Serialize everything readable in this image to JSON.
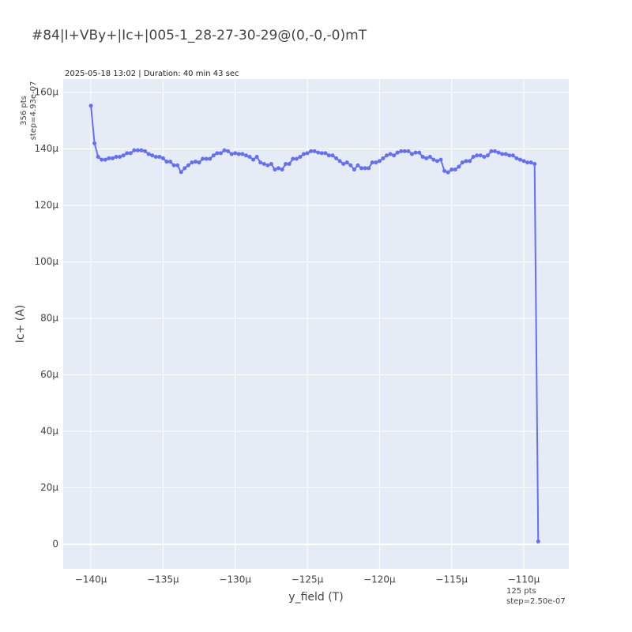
{
  "chart_data": {
    "type": "line",
    "title": "#84|I+VBy+|Ic+|005-1_28-27-30-29@(0,-0,-0)mT",
    "subtitle": "2025-05-18 13:02 | Duration: 40 min 43 sec",
    "y_annotation": [
      "356 pts",
      "step=4.93e-07"
    ],
    "x_annotation": [
      "125 pts",
      "step=2.50e-07"
    ],
    "xlabel": "y_field (T)",
    "ylabel": "Ic+ (A)",
    "xlim": [
      -141.92,
      -106.88
    ],
    "ylim": [
      -8.67,
      164.76
    ],
    "grid": true,
    "xticks": [
      {
        "value": -140,
        "label": "−140µ"
      },
      {
        "value": -135,
        "label": "−135µ"
      },
      {
        "value": -130,
        "label": "−130µ"
      },
      {
        "value": -125,
        "label": "−125µ"
      },
      {
        "value": -120,
        "label": "−120µ"
      },
      {
        "value": -115,
        "label": "−115µ"
      },
      {
        "value": -110,
        "label": "−110µ"
      }
    ],
    "yticks": [
      0,
      {
        "value": 20,
        "label": "20µ"
      },
      {
        "value": 40,
        "label": "40µ"
      },
      {
        "value": 60,
        "label": "60µ"
      },
      {
        "value": 80,
        "label": "80µ"
      },
      {
        "value": 100,
        "label": "100µ"
      },
      {
        "value": 120,
        "label": "120µ"
      },
      {
        "value": 140,
        "label": "140µ"
      },
      {
        "value": 160,
        "label": "160µ"
      }
    ],
    "x": [
      -140,
      -139.75,
      -139.5,
      -139.25,
      -139,
      -138.75,
      -138.5,
      -138.25,
      -138,
      -137.75,
      -137.5,
      -137.25,
      -137,
      -136.75,
      -136.5,
      -136.25,
      -136,
      -135.75,
      -135.5,
      -135.25,
      -135,
      -134.75,
      -134.5,
      -134.25,
      -134,
      -133.75,
      -133.5,
      -133.25,
      -133,
      -132.75,
      -132.5,
      -132.25,
      -132,
      -131.75,
      -131.5,
      -131.25,
      -131,
      -130.75,
      -130.5,
      -130.25,
      -130,
      -129.75,
      -129.5,
      -129.25,
      -129,
      -128.75,
      -128.5,
      -128.25,
      -128,
      -127.75,
      -127.5,
      -127.25,
      -127,
      -126.75,
      -126.5,
      -126.25,
      -126,
      -125.75,
      -125.5,
      -125.25,
      -125,
      -124.75,
      -124.5,
      -124.25,
      -124,
      -123.75,
      -123.5,
      -123.25,
      -123,
      -122.75,
      -122.5,
      -122.25,
      -122,
      -121.75,
      -121.5,
      -121.25,
      -121,
      -120.75,
      -120.5,
      -120.25,
      -120,
      -119.75,
      -119.5,
      -119.25,
      -119,
      -118.75,
      -118.5,
      -118.25,
      -118,
      -117.75,
      -117.5,
      -117.25,
      -117,
      -116.75,
      -116.5,
      -116.25,
      -116,
      -115.75,
      -115.5,
      -115.25,
      -115,
      -114.75,
      -114.5,
      -114.25,
      -114,
      -113.75,
      -113.5,
      -113.25,
      -113,
      -112.75,
      -112.5,
      -112.25,
      -112,
      -111.75,
      -111.5,
      -111.25,
      -111,
      -110.75,
      -110.5,
      -110.25,
      -110,
      -109.75,
      -109.5,
      -109.25,
      -109
    ],
    "series": [
      {
        "color": "#636efa",
        "values": [
          155.3,
          142,
          137.2,
          136.2,
          136.2,
          136.7,
          136.7,
          137.2,
          137.2,
          137.7,
          138.5,
          138.5,
          139.5,
          139.5,
          139.5,
          139.2,
          138.2,
          137.7,
          137.2,
          137.2,
          136.7,
          135.5,
          135.5,
          134.2,
          134.2,
          131.8,
          133.2,
          134.2,
          135.2,
          135.5,
          135.2,
          136.5,
          136.5,
          136.5,
          137.7,
          138.5,
          138.5,
          139.5,
          139.2,
          138.2,
          138.5,
          138.2,
          138.2,
          137.7,
          137.2,
          136.2,
          137.2,
          135.2,
          134.7,
          134.2,
          134.7,
          132.7,
          133.2,
          132.7,
          134.7,
          134.7,
          136.5,
          136.5,
          137.2,
          138.2,
          138.5,
          139.2,
          139.2,
          138.7,
          138.5,
          138.5,
          137.7,
          137.7,
          136.7,
          135.7,
          134.7,
          135.2,
          134.2,
          132.7,
          134.2,
          133.2,
          133.2,
          133.2,
          135.2,
          135.2,
          135.7,
          136.7,
          137.7,
          138.2,
          137.7,
          138.7,
          139.2,
          139.2,
          139.2,
          138.2,
          138.7,
          138.7,
          137.2,
          136.7,
          137.2,
          136.2,
          135.7,
          136.2,
          132.2,
          131.7,
          132.7,
          132.7,
          133.7,
          135.2,
          135.7,
          135.7,
          137.2,
          137.7,
          137.7,
          137.2,
          137.7,
          139.2,
          139.2,
          138.7,
          138.2,
          138.2,
          137.7,
          137.7,
          136.7,
          136.2,
          135.7,
          135.2,
          135.2,
          134.7,
          1.0
        ]
      }
    ]
  }
}
